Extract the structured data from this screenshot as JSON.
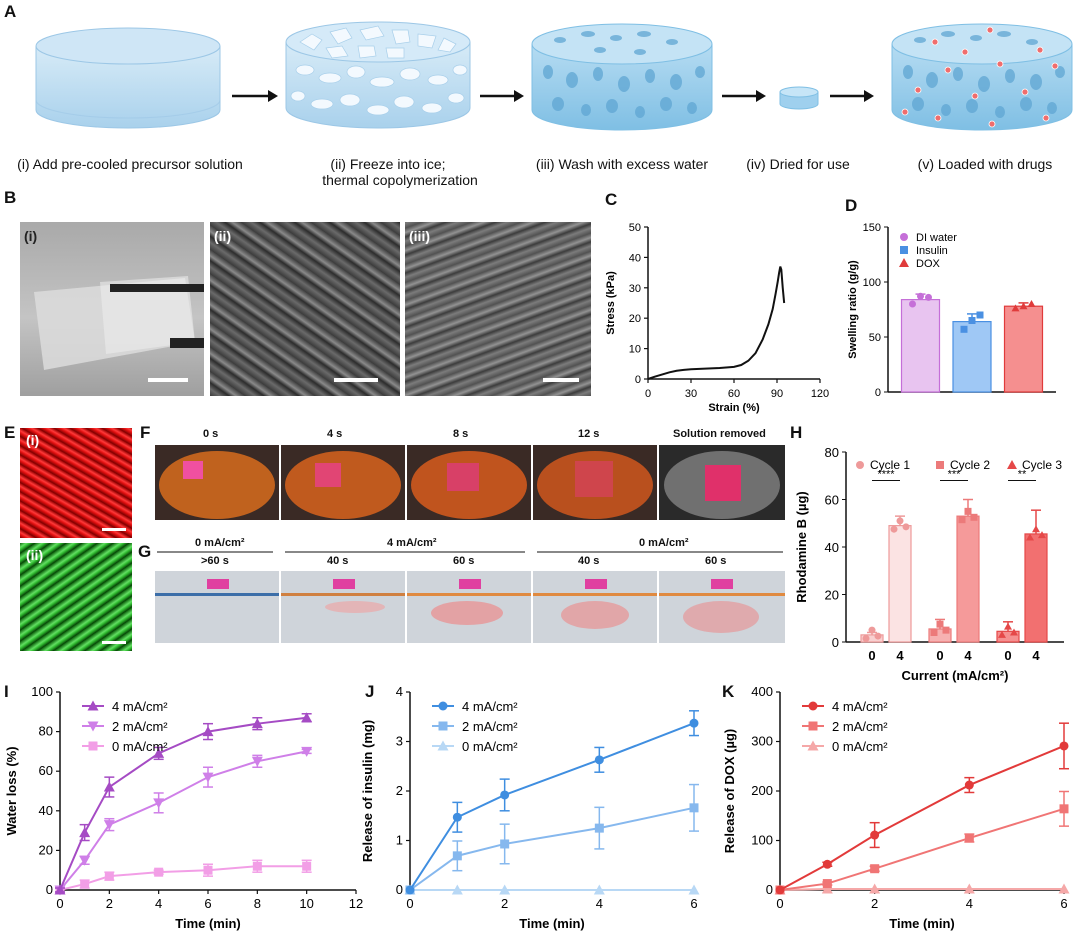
{
  "panels": {
    "A": "A",
    "B": "B",
    "C": "C",
    "D": "D",
    "E": "E",
    "F": "F",
    "G": "G",
    "H": "H",
    "I": "I",
    "J": "J",
    "K": "K"
  },
  "steps": [
    {
      "label": "(i) Add pre-cooled precursor solution"
    },
    {
      "label": "(ii) Freeze into ice;",
      "label2": "thermal copolymerization"
    },
    {
      "label": "(iii) Wash with excess water"
    },
    {
      "label": "(iv) Dried for use"
    },
    {
      "label": "(v) Loaded with drugs"
    }
  ],
  "photos_B": {
    "i": "(i)",
    "ii": "(ii)",
    "iii": "(iii)"
  },
  "photos_E": {
    "i": "(i)",
    "ii": "(ii)"
  },
  "panel_F": {
    "times": [
      "0 s",
      "4 s",
      "8 s",
      "12 s",
      "Solution removed"
    ]
  },
  "panel_G": {
    "groups": [
      "0 mA/cm²",
      "4 mA/cm²",
      "0 mA/cm²"
    ],
    "times": [
      ">60 s",
      "40 s",
      "60 s",
      "40 s",
      "60 s"
    ]
  },
  "chart_data": [
    {
      "id": "C",
      "type": "line",
      "xlabel": "Strain (%)",
      "ylabel": "Stress (kPa)",
      "xlim": [
        0,
        120
      ],
      "ylim": [
        0,
        50
      ],
      "xticks": [
        0,
        30,
        60,
        90,
        120
      ],
      "yticks": [
        0,
        10,
        20,
        30,
        40,
        50
      ],
      "x": [
        0,
        5,
        10,
        15,
        20,
        25,
        30,
        40,
        50,
        60,
        65,
        70,
        75,
        80,
        84,
        87,
        89,
        90.5,
        91.5,
        92.3,
        93,
        94,
        95
      ],
      "y": [
        0,
        0.8,
        1.5,
        2.2,
        2.7,
        3.0,
        3.2,
        3.4,
        3.6,
        4.0,
        4.6,
        6.0,
        8.5,
        13,
        18,
        23,
        28,
        32,
        35,
        37,
        36,
        30,
        25
      ]
    },
    {
      "id": "D",
      "type": "bar",
      "ylabel": "Swelling ratio (g/g)",
      "ylim": [
        0,
        150
      ],
      "yticks": [
        0,
        50,
        100,
        150
      ],
      "categories": [
        "DI water",
        "Insulin",
        "DOX"
      ],
      "values": [
        84,
        64,
        78
      ],
      "errors": [
        5,
        7,
        3
      ],
      "points": [
        [
          80,
          87,
          86
        ],
        [
          57,
          65,
          70
        ],
        [
          76,
          78,
          80
        ]
      ],
      "colors": [
        "#e8c4f0",
        "#9fc8f5",
        "#f58f8f"
      ],
      "edge_colors": [
        "#c56fd8",
        "#4a90e2",
        "#e03b3b"
      ],
      "legend": [
        "DI water",
        "Insulin",
        "DOX"
      ]
    },
    {
      "id": "H",
      "type": "bar",
      "xlabel": "Current (mA/cm²)",
      "ylabel": "Rhodamine B (µg)",
      "ylim": [
        0,
        80
      ],
      "yticks": [
        0,
        20,
        40,
        60,
        80
      ],
      "categories": [
        "0",
        "4",
        "0",
        "4",
        "0",
        "4"
      ],
      "values": [
        3,
        49,
        5.5,
        53,
        4.5,
        45.5
      ],
      "errors": [
        1,
        4,
        4,
        7,
        4,
        10
      ],
      "cycles": [
        "Cycle 1",
        "Cycle 2",
        "Cycle 3"
      ],
      "significance": [
        "****",
        "***",
        "**"
      ],
      "legend": [
        "Cycle 1",
        "Cycle 2",
        "Cycle 3"
      ]
    },
    {
      "id": "I",
      "type": "line",
      "xlabel": "Time (min)",
      "ylabel": "Water loss (%)",
      "xlim": [
        0,
        12
      ],
      "ylim": [
        0,
        100
      ],
      "xticks": [
        0,
        2,
        4,
        6,
        8,
        10,
        12
      ],
      "yticks": [
        0,
        20,
        40,
        60,
        80,
        100
      ],
      "x": [
        0,
        1,
        2,
        4,
        6,
        8,
        10
      ],
      "series": [
        {
          "name": "4 mA/cm²",
          "values": [
            0,
            29,
            52,
            69,
            80,
            84,
            87
          ],
          "errors": [
            1,
            4,
            5,
            3,
            4,
            3,
            2
          ],
          "color": "#a54bc4",
          "marker": "triangle-up"
        },
        {
          "name": "2 mA/cm²",
          "values": [
            0,
            15,
            33,
            44,
            57,
            65,
            70
          ],
          "errors": [
            1,
            2,
            3,
            5,
            5,
            3,
            1
          ],
          "color": "#cf7fe8",
          "marker": "triangle-down"
        },
        {
          "name": "0 mA/cm²",
          "values": [
            0,
            3,
            7,
            9,
            10,
            12,
            12
          ],
          "errors": [
            1,
            2,
            2,
            1,
            3,
            3,
            3
          ],
          "color": "#f29ee6",
          "marker": "square"
        }
      ]
    },
    {
      "id": "J",
      "type": "line",
      "xlabel": "Time (min)",
      "ylabel": "Release of insulin (mg)",
      "xlim": [
        0,
        6
      ],
      "ylim": [
        0,
        4
      ],
      "xticks": [
        0,
        2,
        4,
        6
      ],
      "yticks": [
        0,
        1,
        2,
        3,
        4
      ],
      "x": [
        0,
        1,
        2,
        4,
        6
      ],
      "series": [
        {
          "name": "4 mA/cm²",
          "values": [
            0,
            1.47,
            1.92,
            2.63,
            3.37
          ],
          "errors": [
            0,
            0.3,
            0.32,
            0.25,
            0.25
          ],
          "color": "#3f8ee0",
          "marker": "circle"
        },
        {
          "name": "2 mA/cm²",
          "values": [
            0,
            0.69,
            0.93,
            1.25,
            1.66
          ],
          "errors": [
            0,
            0.3,
            0.4,
            0.42,
            0.47
          ],
          "color": "#86b8ee",
          "marker": "square"
        },
        {
          "name": "0 mA/cm²",
          "values": [
            0,
            0,
            0,
            0,
            0
          ],
          "errors": [
            0,
            0,
            0,
            0,
            0
          ],
          "color": "#b8d8f5",
          "marker": "triangle-up"
        }
      ]
    },
    {
      "id": "K",
      "type": "line",
      "xlabel": "Time (min)",
      "ylabel": "Release of DOX (µg)",
      "xlim": [
        0,
        6
      ],
      "ylim": [
        0,
        400
      ],
      "xticks": [
        0,
        2,
        4,
        6
      ],
      "yticks": [
        0,
        100,
        200,
        300,
        400
      ],
      "x": [
        0,
        1,
        2,
        4,
        6
      ],
      "series": [
        {
          "name": "4 mA/cm²",
          "values": [
            0,
            52,
            111,
            212,
            291
          ],
          "errors": [
            0,
            4,
            25,
            15,
            46
          ],
          "color": "#e23a3a",
          "marker": "circle"
        },
        {
          "name": "2 mA/cm²",
          "values": [
            0,
            13,
            43,
            105,
            164
          ],
          "errors": [
            0,
            3,
            5,
            8,
            35
          ],
          "color": "#f07575",
          "marker": "square"
        },
        {
          "name": "0 mA/cm²",
          "values": [
            0,
            2,
            2,
            2,
            2
          ],
          "errors": [
            0,
            0,
            0,
            0,
            0
          ],
          "color": "#f5a8a8",
          "marker": "triangle-up"
        }
      ]
    }
  ]
}
